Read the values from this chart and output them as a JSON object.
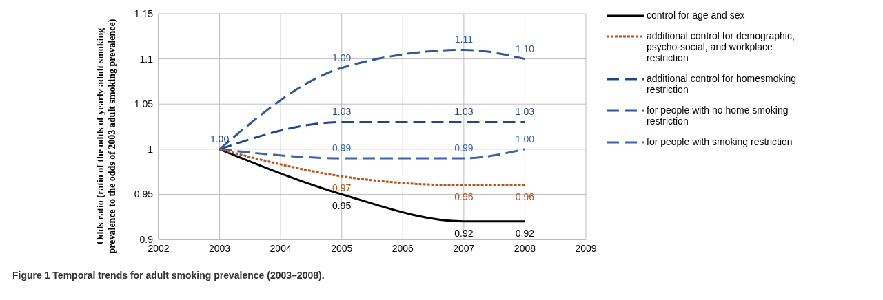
{
  "chart_data": {
    "type": "line",
    "ylabel": "Odds ratio (ratio of the odds of yearly adult smoking prevalence to the odds of 2003 adult smoking prevalence)",
    "x": [
      2003,
      2005,
      2007,
      2008
    ],
    "xlim": [
      2002,
      2009
    ],
    "xticks": [
      2002,
      2003,
      2004,
      2005,
      2006,
      2007,
      2008,
      2009
    ],
    "ylim": [
      0.9,
      1.15
    ],
    "yticks": [
      0.9,
      0.95,
      1,
      1.05,
      1.1,
      1.15
    ],
    "grid": true,
    "legend": "right",
    "marker": "none",
    "series": [
      {
        "name": "control for age and sex",
        "color": "#000000",
        "line_style": "solid",
        "values": [
          1,
          0.95,
          0.92,
          0.92
        ],
        "value_labels": [
          null,
          "0.95",
          "0.92",
          "0.92"
        ]
      },
      {
        "name": "additional control for demographic, psycho-social, and workplace restriction",
        "color": "#b5541c",
        "line_style": "dotted",
        "values": [
          1,
          0.97,
          0.96,
          0.96
        ],
        "value_labels": [
          null,
          "0.97",
          "0.96",
          "0.96"
        ]
      },
      {
        "name": "additional control for homesmoking restriction",
        "color": "#1f497d",
        "line_style": "dashed",
        "values": [
          1,
          1.03,
          1.03,
          1.03
        ],
        "value_labels": [
          "1.00",
          "1.03",
          "1.03",
          "1.03"
        ]
      },
      {
        "name": "for people with no home smoking restriction",
        "color": "#2f5b94",
        "line_style": "dashed",
        "values": [
          1,
          1.09,
          1.11,
          1.1
        ],
        "value_labels": [
          null,
          "1.09",
          "1.11",
          "1.10"
        ]
      },
      {
        "name": "for people with smoking restriction",
        "color": "#3b67a3",
        "line_style": "dashed",
        "values": [
          1,
          0.99,
          0.99,
          1.0
        ],
        "value_labels": [
          null,
          "0.99",
          "0.99",
          "1.00"
        ]
      }
    ],
    "annotations": [
      "Figure 1 Temporal trends for adult smoking prevalence (2003–2008)."
    ]
  }
}
